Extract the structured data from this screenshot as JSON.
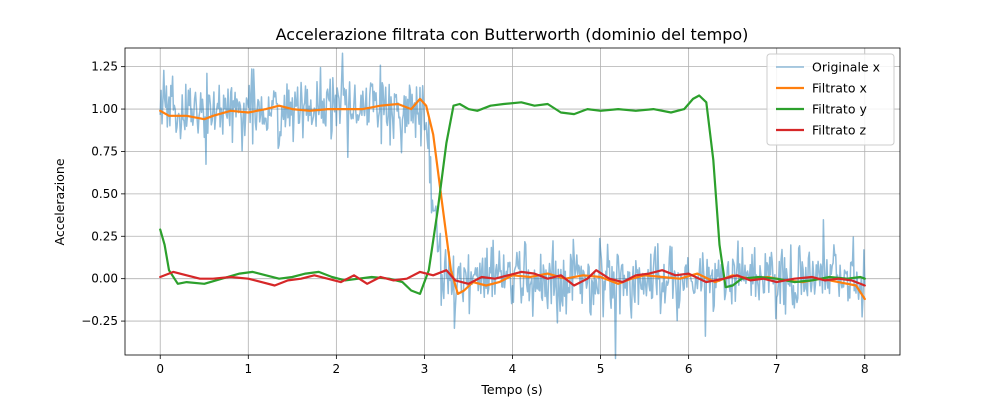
{
  "chart_data": {
    "type": "line",
    "title": "Accelerazione filtrata con Butterworth (dominio del tempo)",
    "xlabel": "Tempo (s)",
    "ylabel": "Accelerazione",
    "xlim": [
      -0.4,
      8.4
    ],
    "ylim": [
      -0.45,
      1.36
    ],
    "xticks": [
      0,
      1,
      2,
      3,
      4,
      5,
      6,
      7,
      8
    ],
    "xtick_labels": [
      "0",
      "1",
      "2",
      "3",
      "4",
      "5",
      "6",
      "7",
      "8"
    ],
    "yticks": [
      -0.25,
      0.0,
      0.25,
      0.5,
      0.75,
      1.0,
      1.25
    ],
    "ytick_labels": [
      "−0.25",
      "0.00",
      "0.25",
      "0.50",
      "0.75",
      "1.00",
      "1.25"
    ],
    "grid": true,
    "legend_position": "top-right",
    "series": [
      {
        "name": "Originale x",
        "color": "#1f77b4",
        "alpha": 0.5,
        "noisy": true,
        "noise_amplitude": 0.1,
        "points": [
          [
            0,
            1.0
          ],
          [
            3.0,
            1.0
          ],
          [
            3.2,
            0.0
          ],
          [
            8,
            0.0
          ]
        ]
      },
      {
        "name": "Filtrato x",
        "color": "#ff7f0e",
        "points": [
          [
            0,
            0.99
          ],
          [
            0.1,
            0.96
          ],
          [
            0.3,
            0.96
          ],
          [
            0.5,
            0.94
          ],
          [
            0.6,
            0.96
          ],
          [
            0.8,
            0.99
          ],
          [
            1.0,
            0.98
          ],
          [
            1.2,
            1.0
          ],
          [
            1.35,
            1.02
          ],
          [
            1.5,
            1.0
          ],
          [
            1.7,
            0.99
          ],
          [
            1.9,
            1.0
          ],
          [
            2.1,
            1.0
          ],
          [
            2.3,
            1.0
          ],
          [
            2.5,
            1.02
          ],
          [
            2.7,
            1.03
          ],
          [
            2.85,
            1.0
          ],
          [
            2.95,
            1.06
          ],
          [
            3.02,
            1.02
          ],
          [
            3.1,
            0.85
          ],
          [
            3.2,
            0.45
          ],
          [
            3.3,
            0.05
          ],
          [
            3.38,
            -0.09
          ],
          [
            3.45,
            -0.07
          ],
          [
            3.55,
            -0.02
          ],
          [
            3.7,
            -0.04
          ],
          [
            3.85,
            -0.02
          ],
          [
            4.0,
            0.02
          ],
          [
            4.2,
            0.01
          ],
          [
            4.4,
            0.03
          ],
          [
            4.6,
            0.0
          ],
          [
            4.8,
            0.02
          ],
          [
            5.0,
            0.01
          ],
          [
            5.2,
            -0.03
          ],
          [
            5.35,
            0.0
          ],
          [
            5.5,
            0.02
          ],
          [
            5.7,
            0.01
          ],
          [
            5.9,
            0.0
          ],
          [
            6.1,
            0.03
          ],
          [
            6.3,
            -0.02
          ],
          [
            6.5,
            0.02
          ],
          [
            6.7,
            0.0
          ],
          [
            6.9,
            0.01
          ],
          [
            7.1,
            -0.01
          ],
          [
            7.3,
            -0.02
          ],
          [
            7.5,
            0.0
          ],
          [
            7.7,
            -0.02
          ],
          [
            7.9,
            -0.04
          ],
          [
            8.0,
            -0.12
          ]
        ]
      },
      {
        "name": "Filtrato y",
        "color": "#2ca02c",
        "points": [
          [
            0,
            0.29
          ],
          [
            0.05,
            0.2
          ],
          [
            0.1,
            0.05
          ],
          [
            0.2,
            -0.03
          ],
          [
            0.3,
            -0.02
          ],
          [
            0.5,
            -0.03
          ],
          [
            0.7,
            0.0
          ],
          [
            0.9,
            0.03
          ],
          [
            1.05,
            0.04
          ],
          [
            1.2,
            0.02
          ],
          [
            1.35,
            0.0
          ],
          [
            1.5,
            0.01
          ],
          [
            1.65,
            0.03
          ],
          [
            1.8,
            0.04
          ],
          [
            1.95,
            0.01
          ],
          [
            2.1,
            -0.01
          ],
          [
            2.25,
            0.0
          ],
          [
            2.4,
            0.01
          ],
          [
            2.6,
            0.0
          ],
          [
            2.75,
            -0.02
          ],
          [
            2.85,
            -0.07
          ],
          [
            2.95,
            -0.09
          ],
          [
            3.05,
            0.05
          ],
          [
            3.15,
            0.4
          ],
          [
            3.25,
            0.8
          ],
          [
            3.33,
            1.02
          ],
          [
            3.4,
            1.03
          ],
          [
            3.5,
            1.0
          ],
          [
            3.6,
            0.99
          ],
          [
            3.75,
            1.02
          ],
          [
            3.9,
            1.03
          ],
          [
            4.1,
            1.04
          ],
          [
            4.25,
            1.02
          ],
          [
            4.4,
            1.03
          ],
          [
            4.55,
            0.98
          ],
          [
            4.7,
            0.97
          ],
          [
            4.85,
            1.0
          ],
          [
            5.0,
            0.99
          ],
          [
            5.2,
            1.0
          ],
          [
            5.4,
            0.99
          ],
          [
            5.6,
            1.0
          ],
          [
            5.8,
            0.98
          ],
          [
            5.95,
            1.0
          ],
          [
            6.05,
            1.06
          ],
          [
            6.12,
            1.08
          ],
          [
            6.2,
            1.04
          ],
          [
            6.28,
            0.7
          ],
          [
            6.35,
            0.2
          ],
          [
            6.42,
            -0.05
          ],
          [
            6.5,
            -0.04
          ],
          [
            6.6,
            0.0
          ],
          [
            6.8,
            0.01
          ],
          [
            7.0,
            0.0
          ],
          [
            7.2,
            -0.02
          ],
          [
            7.4,
            -0.01
          ],
          [
            7.6,
            0.01
          ],
          [
            7.8,
            0.0
          ],
          [
            7.95,
            0.01
          ],
          [
            8.0,
            0.0
          ]
        ]
      },
      {
        "name": "Filtrato z",
        "color": "#d62728",
        "points": [
          [
            0,
            0.01
          ],
          [
            0.15,
            0.04
          ],
          [
            0.3,
            0.02
          ],
          [
            0.45,
            0.0
          ],
          [
            0.6,
            0.0
          ],
          [
            0.8,
            0.01
          ],
          [
            1.0,
            0.0
          ],
          [
            1.15,
            -0.02
          ],
          [
            1.3,
            -0.04
          ],
          [
            1.45,
            -0.01
          ],
          [
            1.6,
            0.0
          ],
          [
            1.75,
            0.02
          ],
          [
            1.9,
            0.0
          ],
          [
            2.05,
            -0.02
          ],
          [
            2.2,
            0.02
          ],
          [
            2.35,
            -0.03
          ],
          [
            2.5,
            0.01
          ],
          [
            2.65,
            -0.01
          ],
          [
            2.8,
            0.0
          ],
          [
            2.95,
            0.04
          ],
          [
            3.1,
            0.02
          ],
          [
            3.25,
            0.05
          ],
          [
            3.35,
            -0.01
          ],
          [
            3.5,
            -0.03
          ],
          [
            3.65,
            0.01
          ],
          [
            3.8,
            0.0
          ],
          [
            3.95,
            0.02
          ],
          [
            4.1,
            0.04
          ],
          [
            4.25,
            0.03
          ],
          [
            4.4,
            0.0
          ],
          [
            4.55,
            0.02
          ],
          [
            4.7,
            -0.04
          ],
          [
            4.85,
            0.0
          ],
          [
            4.95,
            0.05
          ],
          [
            5.1,
            0.0
          ],
          [
            5.25,
            -0.02
          ],
          [
            5.4,
            0.02
          ],
          [
            5.55,
            0.03
          ],
          [
            5.7,
            0.05
          ],
          [
            5.85,
            0.02
          ],
          [
            6.0,
            0.03
          ],
          [
            6.2,
            -0.02
          ],
          [
            6.4,
            0.0
          ],
          [
            6.55,
            0.02
          ],
          [
            6.7,
            -0.01
          ],
          [
            6.85,
            0.0
          ],
          [
            7.0,
            -0.02
          ],
          [
            7.2,
            0.0
          ],
          [
            7.4,
            0.01
          ],
          [
            7.55,
            -0.01
          ],
          [
            7.7,
            0.0
          ],
          [
            7.85,
            -0.01
          ],
          [
            8.0,
            -0.04
          ]
        ]
      }
    ]
  }
}
